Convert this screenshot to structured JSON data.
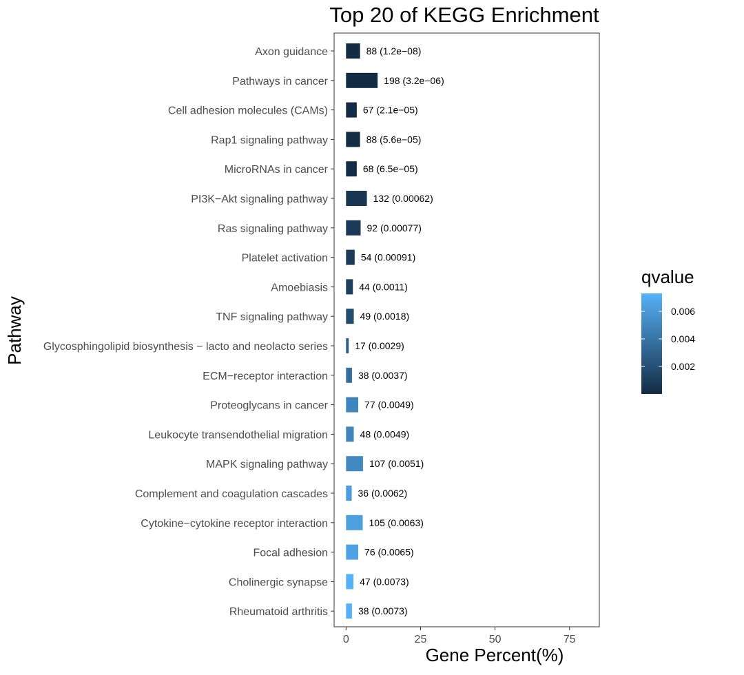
{
  "chart_data": {
    "type": "bar",
    "orientation": "horizontal",
    "title": "Top 20 of KEGG Enrichment",
    "xlabel": "Gene Percent(%)",
    "ylabel": "Pathway",
    "xlim": [
      -4,
      85
    ],
    "xticks": [
      0,
      25,
      50,
      75
    ],
    "xtick_labels": [
      "0",
      "25",
      "50",
      "75"
    ],
    "grid": false,
    "legend": {
      "title": "qvalue",
      "placement": "right",
      "type": "colorbar",
      "range": [
        1.2e-08,
        0.0073
      ],
      "ticks": [
        0.002,
        0.004,
        0.006
      ],
      "tick_labels": [
        "0.002",
        "0.004",
        "0.006"
      ],
      "low_color": "#132b43",
      "high_color": "#56b1f7"
    },
    "categories": [
      "Axon guidance",
      "Pathways in cancer",
      "Cell adhesion molecules (CAMs)",
      "Rap1 signaling pathway",
      "MicroRNAs in cancer",
      "PI3K−Akt signaling pathway",
      "Ras signaling pathway",
      "Platelet activation",
      "Amoebiasis",
      "TNF signaling pathway",
      "Glycosphingolipid biosynthesis − lacto and neolacto series",
      "ECM−receptor interaction",
      "Proteoglycans in cancer",
      "Leukocyte transendothelial migration",
      "MAPK signaling pathway",
      "Complement and coagulation cascades",
      "Cytokine−cytokine receptor interaction",
      "Focal adhesion",
      "Cholinergic synapse",
      "Rheumatoid arthritis"
    ],
    "values": [
      4.7,
      10.6,
      3.6,
      4.7,
      3.6,
      7.0,
      4.9,
      2.9,
      2.3,
      2.6,
      0.9,
      2.0,
      4.1,
      2.6,
      5.7,
      1.9,
      5.6,
      4.1,
      2.5,
      2.0
    ],
    "gene_counts": [
      88,
      198,
      67,
      88,
      68,
      132,
      92,
      54,
      44,
      49,
      17,
      38,
      77,
      48,
      107,
      36,
      105,
      76,
      47,
      38
    ],
    "qvalues": [
      1.2e-08,
      3.2e-06,
      2.1e-05,
      5.6e-05,
      6.5e-05,
      0.00062,
      0.00077,
      0.00091,
      0.0011,
      0.0018,
      0.0029,
      0.0037,
      0.0049,
      0.0049,
      0.0051,
      0.0062,
      0.0063,
      0.0065,
      0.0073,
      0.0073
    ],
    "bar_labels": [
      "88 (1.2e−08)",
      "198 (3.2e−06)",
      "67 (2.1e−05)",
      "88 (5.6e−05)",
      "68 (6.5e−05)",
      "132 (0.00062)",
      "92 (0.00077)",
      "54 (0.00091)",
      "44 (0.0011)",
      "49 (0.0018)",
      "17 (0.0029)",
      "38 (0.0037)",
      "77 (0.0049)",
      "48 (0.0049)",
      "107 (0.0051)",
      "36 (0.0062)",
      "105 (0.0063)",
      "76 (0.0065)",
      "47 (0.0073)",
      "38 (0.0073)"
    ]
  }
}
